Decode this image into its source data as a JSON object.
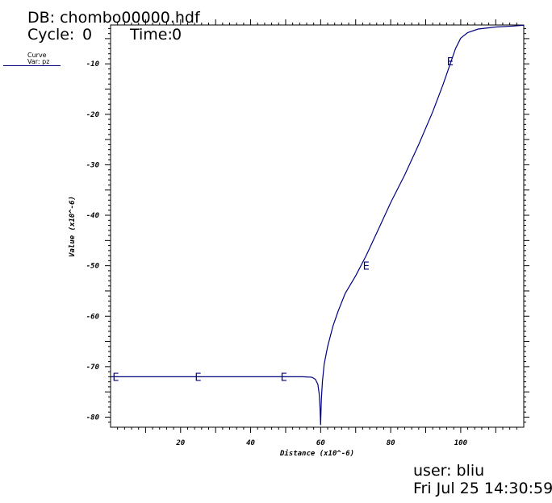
{
  "header": {
    "db": "DB: chombo00000.hdf",
    "cycle_label": "Cycle:",
    "cycle_value": "0",
    "time_label": "Time:",
    "time_value": "0"
  },
  "legend": {
    "title": "Curve",
    "var": "Var: pz",
    "color": "#000080"
  },
  "footer": {
    "user": "user: bliu",
    "date": "Fri Jul 25 14:30:59"
  },
  "chart_data": {
    "type": "line",
    "xlabel": "Distance (x10^-6)",
    "ylabel": "Value (x10^-6)",
    "xlim": [
      0,
      118
    ],
    "ylim": [
      -82,
      -2.3
    ],
    "xticks": [
      20,
      40,
      60,
      80,
      100
    ],
    "yticks": [
      -80,
      -70,
      -60,
      -50,
      -40,
      -30,
      -20,
      -10
    ],
    "xtick_labels": [
      "20",
      "40",
      "60",
      "80",
      "100"
    ],
    "ytick_labels": [
      "-80",
      "-70",
      "-60",
      "-50",
      "-40",
      "-30",
      "-20",
      "-10"
    ],
    "grid": false,
    "series": [
      {
        "color": "#000080",
        "x": [
          0,
          10,
          20,
          30,
          40,
          50,
          55,
          57.5,
          58.5,
          59.2,
          59.6,
          59.8,
          60.0,
          60.2,
          60.5,
          61.0,
          62.0,
          63.5,
          65,
          67,
          70,
          73,
          76,
          80,
          84,
          88,
          92,
          95,
          97,
          98.5,
          100,
          102,
          105,
          110,
          115,
          118
        ],
        "y": [
          -72.0,
          -72.0,
          -72.0,
          -72.0,
          -72.0,
          -72.0,
          -72.0,
          -72.1,
          -72.5,
          -73.5,
          -75.5,
          -78.0,
          -81.5,
          -76.5,
          -73.0,
          -69.5,
          -66.0,
          -62.0,
          -59.0,
          -55.5,
          -52.0,
          -48.0,
          -43.5,
          -37.5,
          -32.0,
          -26.0,
          -19.5,
          -14.0,
          -10.0,
          -7.0,
          -4.9,
          -3.8,
          -3.1,
          -2.7,
          -2.5,
          -2.35
        ]
      }
    ],
    "markers": {
      "label": "E",
      "x": [
        1.5,
        25.0,
        49.5,
        73.0,
        97.0
      ],
      "y": [
        -72.0,
        -72.0,
        -72.0,
        -50.0,
        -9.5
      ]
    }
  }
}
